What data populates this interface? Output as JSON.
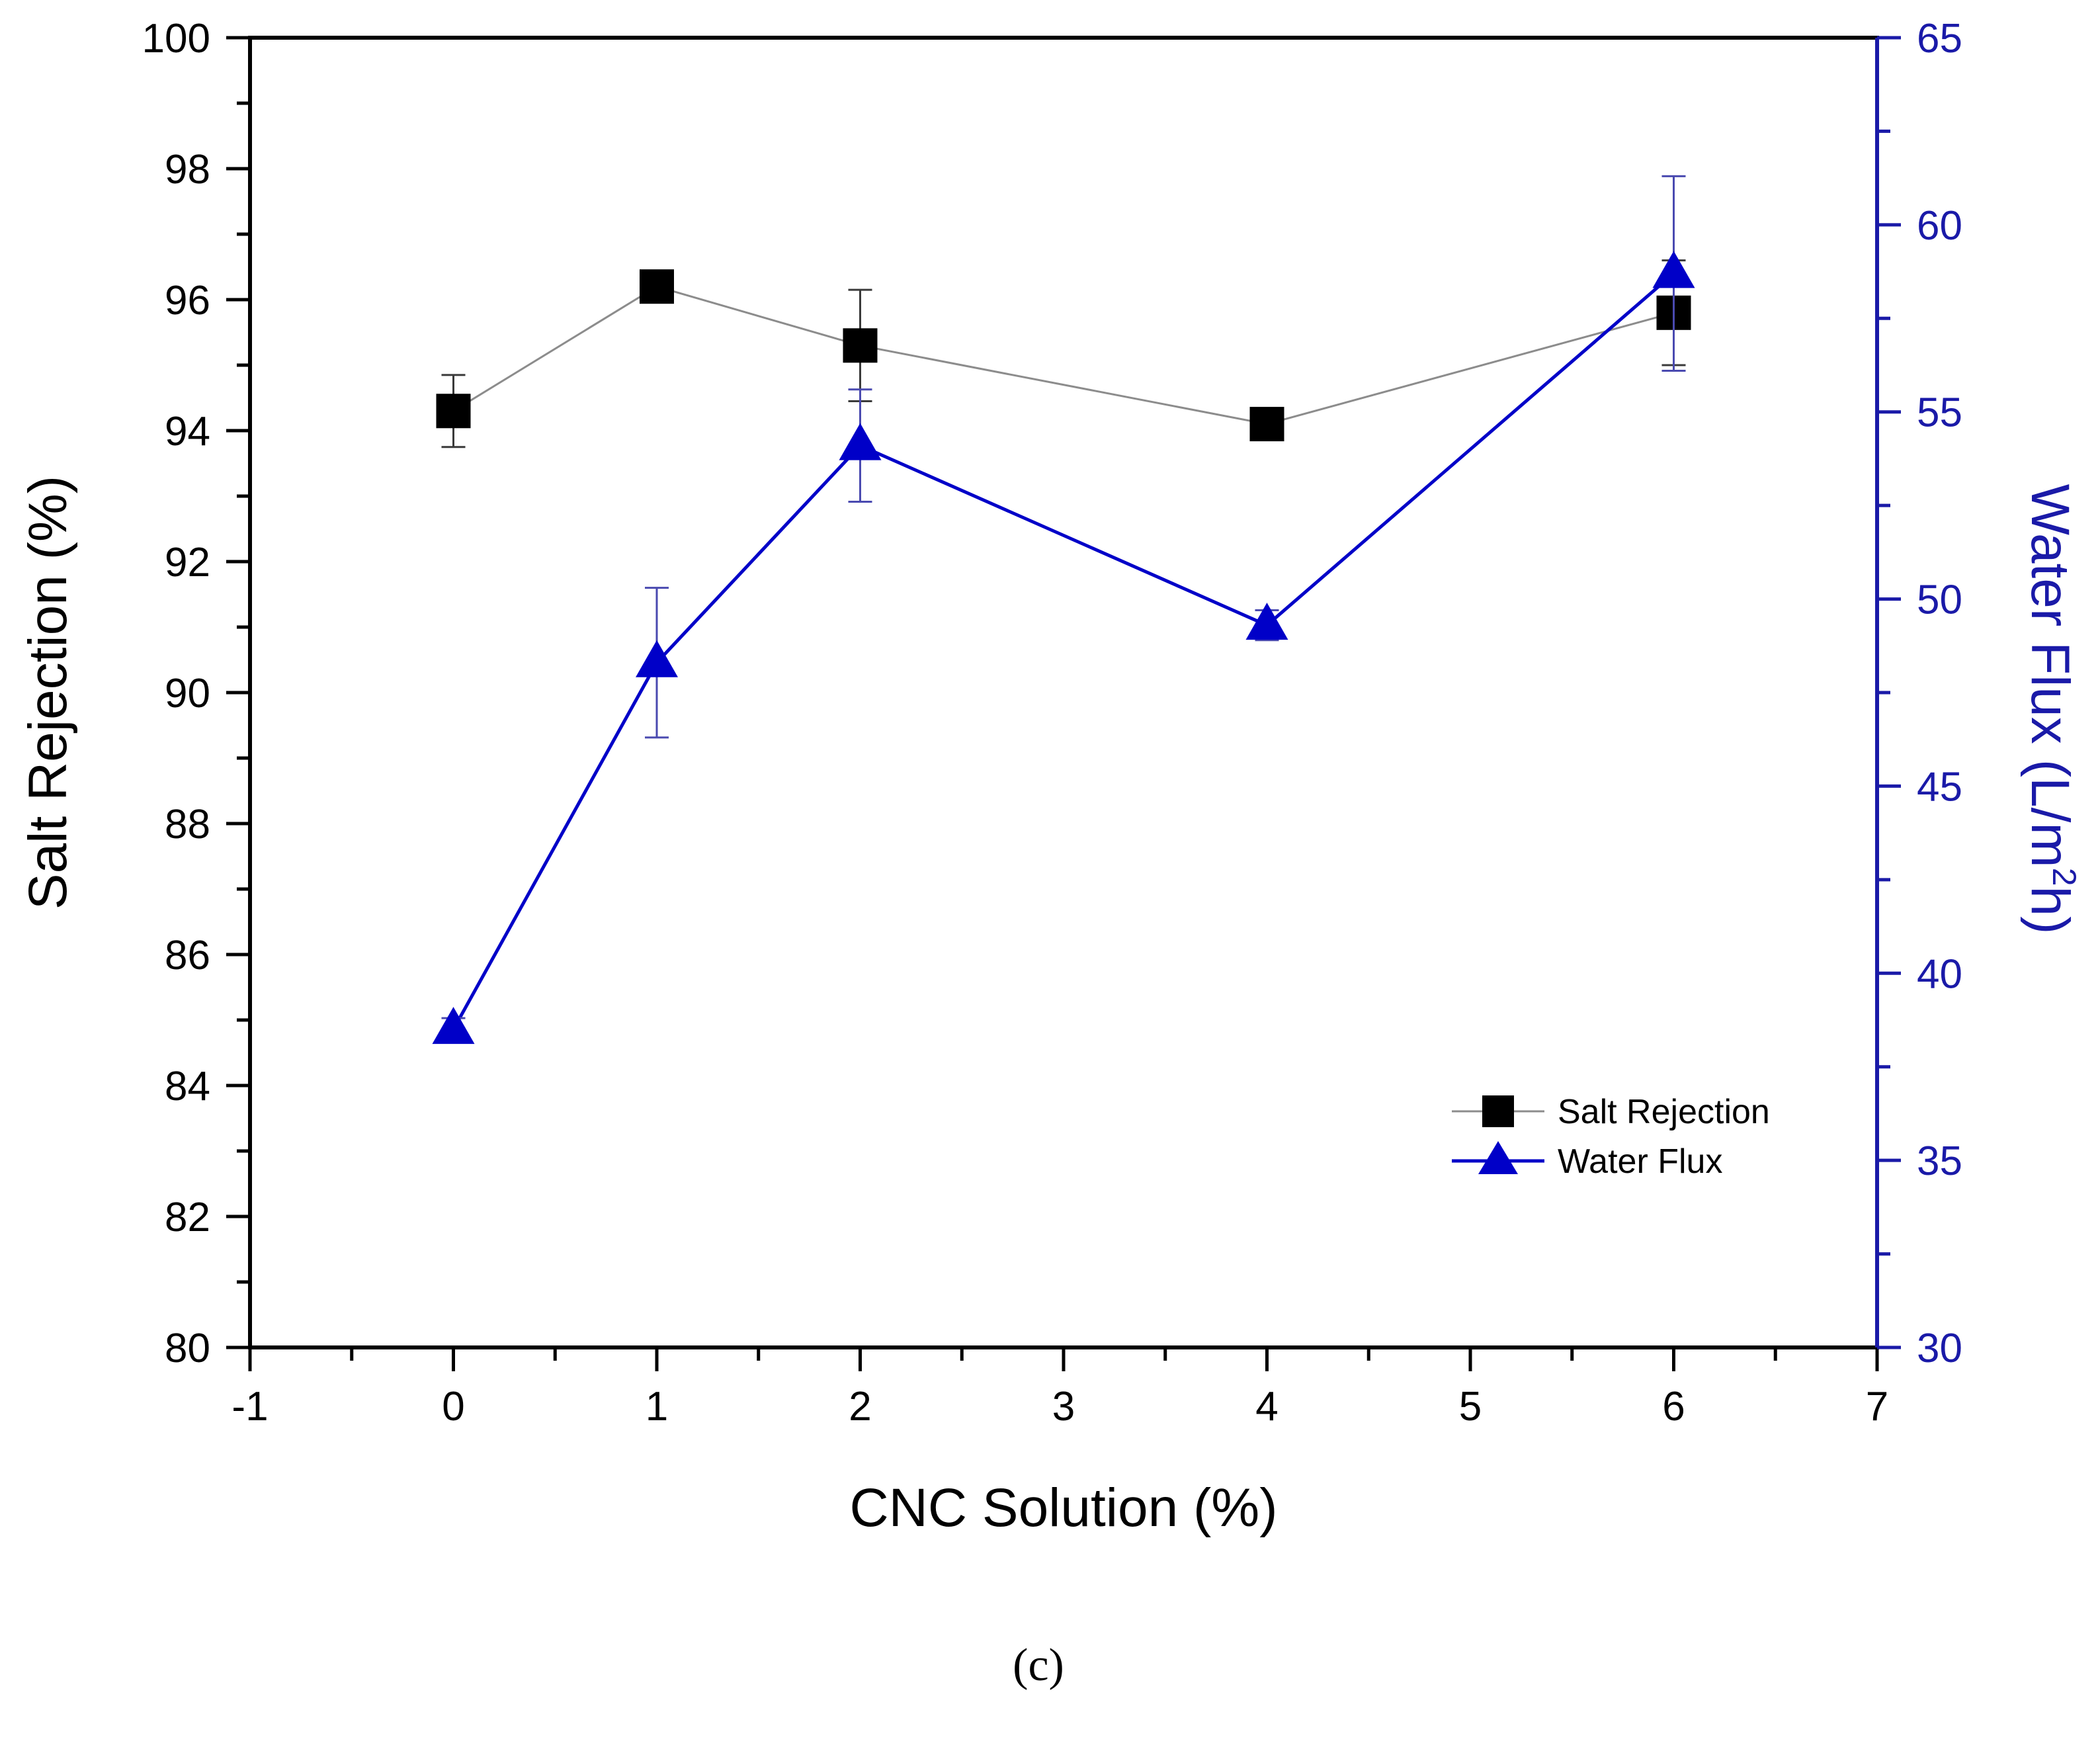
{
  "chart_data": {
    "type": "line",
    "title": "",
    "xlabel": "CNC Solution (%)",
    "ylabel": "Salt Rejection (%)",
    "y2label": {
      "main": "Water Flux (L/m",
      "sup": "2",
      "tail": "h)"
    },
    "xlim": [
      -1,
      7
    ],
    "ylim": [
      80,
      100
    ],
    "y2lim": [
      30,
      65
    ],
    "x_ticks": [
      -1,
      0,
      1,
      2,
      3,
      4,
      5,
      6,
      7
    ],
    "y_ticks": [
      80,
      82,
      84,
      86,
      88,
      90,
      92,
      94,
      96,
      98,
      100
    ],
    "y2_ticks": [
      30,
      35,
      40,
      45,
      50,
      55,
      60,
      65
    ],
    "legend_position": "lower-right",
    "caption": "(c)",
    "colors": {
      "salt_line": "#8c8c8c",
      "salt_marker": "#000000",
      "flux": "#0000c8",
      "axis": "#000000",
      "right_axis": "#1a1aa8"
    },
    "series": [
      {
        "name": "Salt Rejection",
        "axis": "left",
        "marker": "square",
        "x": [
          0,
          1,
          2,
          4,
          6
        ],
        "values": [
          94.3,
          96.2,
          95.3,
          94.1,
          95.8
        ],
        "error": [
          0.55,
          0.1,
          0.85,
          0.1,
          0.8
        ]
      },
      {
        "name": "Water Flux",
        "axis": "right",
        "marker": "triangle",
        "x": [
          0,
          1,
          2,
          4,
          6
        ],
        "values": [
          38.5,
          48.3,
          54.1,
          49.3,
          58.7
        ],
        "error": [
          0.3,
          2.0,
          1.5,
          0.4,
          2.6
        ]
      }
    ]
  }
}
